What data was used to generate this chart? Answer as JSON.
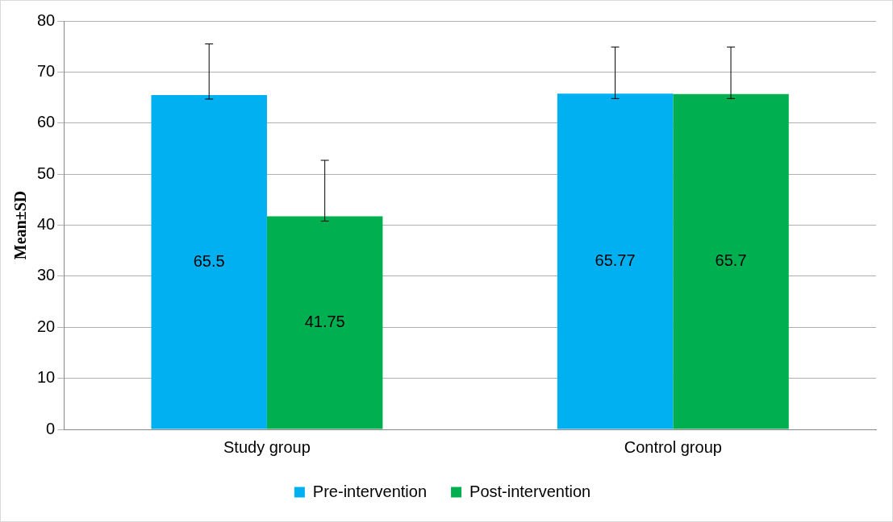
{
  "chart_data": {
    "type": "bar",
    "ylabel": "Mean±SD",
    "categories": [
      "Study group",
      "Control group"
    ],
    "series": [
      {
        "name": "Pre-intervention",
        "color": "#00b0f0",
        "values": [
          65.5,
          65.77
        ],
        "errors": [
          [
            64.7,
            75.5
          ],
          [
            64.8,
            74.9
          ]
        ]
      },
      {
        "name": "Post-intervention",
        "color": "#00b050",
        "values": [
          41.75,
          65.7
        ],
        "errors": [
          [
            40.8,
            52.7
          ],
          [
            64.8,
            74.9
          ]
        ]
      }
    ],
    "ylim": [
      0,
      80
    ],
    "yticks": [
      0,
      10,
      20,
      30,
      40,
      50,
      60,
      70,
      80
    ],
    "grid": "y",
    "legend": "bottom",
    "data_labels": true
  }
}
